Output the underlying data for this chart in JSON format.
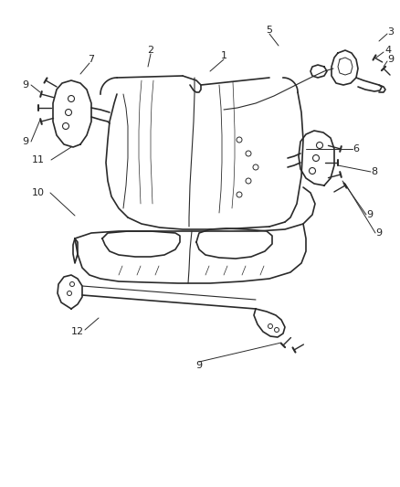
{
  "background_color": "#ffffff",
  "line_color": "#2a2a2a",
  "label_color": "#222222",
  "figsize": [
    4.38,
    5.33
  ],
  "dpi": 100,
  "font_size": 8
}
